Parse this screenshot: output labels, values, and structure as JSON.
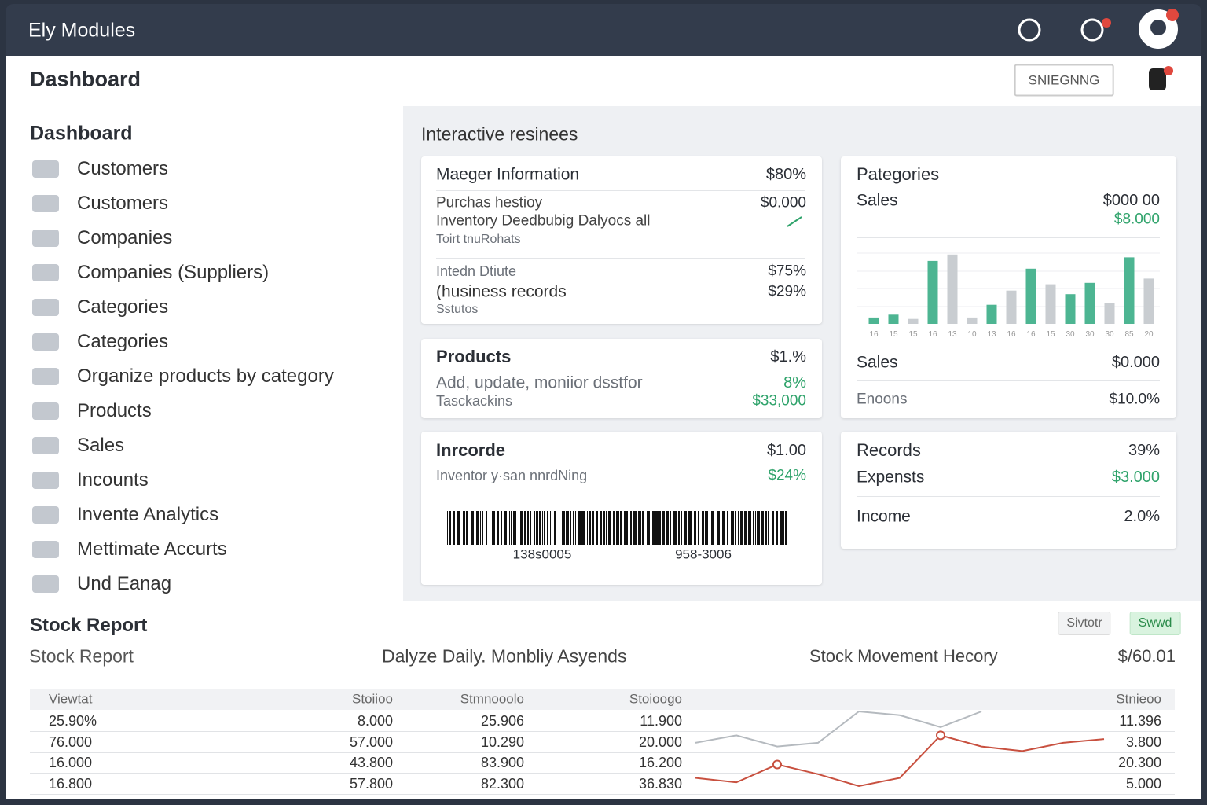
{
  "topbar": {
    "title": "Ely Modules"
  },
  "header": {
    "title": "Dashboard",
    "button": "SNIEGNNG"
  },
  "sidebar": {
    "title": "Dashboard",
    "items": [
      "Customers",
      "Customers",
      "Companies",
      "Companies (Suppliers)",
      "Categories",
      "Categories",
      "Organize products by category",
      "Products",
      "Sales",
      "Incounts",
      "Invente Analytics",
      "Mettimate Accurts",
      "Und Eanag"
    ]
  },
  "main": {
    "title": "Interactive resinees",
    "manager_card": {
      "title": "Maeger Information",
      "title_value": "$80%",
      "purchase": "Purchas hestioy",
      "purchase_value": "$0.000",
      "inventory": "Inventory Deedbubig Dalyocs all",
      "inventory_note": "Toirt tnuRohats",
      "intake": "Intedn Dtiute",
      "intake_value": "$75%",
      "records": "(husiness records",
      "records_value": "$29%",
      "status": "Sstutos"
    },
    "products_card": {
      "title": "Products",
      "title_value": "$1.%",
      "desc": "Add, update, moniior dsstfor",
      "desc_value": "8%",
      "track": "Tasckackins",
      "track_value": "$33,000"
    },
    "barcode_card": {
      "title": "Inrcorde",
      "title_value": "$1.00",
      "desc": "Inventor y·san nnrdNing",
      "desc_value": "$24%",
      "code_left": "138s0005",
      "code_right": "958-3006"
    },
    "categories_card": {
      "title": "Pategories",
      "sales": "Sales",
      "sales_value": "$000 00",
      "sales_change": "$8.000",
      "chart": {
        "type": "bar",
        "categories": [
          "16",
          "15",
          "15",
          "16",
          "13",
          "10",
          "13",
          "16",
          "16",
          "15",
          "30",
          "30",
          "30",
          "85",
          "20"
        ],
        "values": [
          9,
          13,
          7,
          89,
          98,
          9,
          27,
          47,
          78,
          56,
          42,
          58,
          29,
          94,
          64
        ],
        "colors": [
          "#4db592",
          "#4db592",
          "#c9cdd1",
          "#4db592",
          "#c9cdd1",
          "#c9cdd1",
          "#4db592",
          "#c9cdd1",
          "#4db592",
          "#c9cdd1",
          "#4db592",
          "#4db592",
          "#c9cdd1",
          "#4db592",
          "#c9cdd1"
        ]
      },
      "sales2": "Sales",
      "sales2_value": "$0.000",
      "enoons": "Enoons",
      "enoons_value": "$10.0%"
    },
    "records_card": {
      "title": "Records",
      "title_value": "39%",
      "expenses": "Expensts",
      "expenses_value": "$3.000",
      "income": "Income",
      "income_value": "2.0%"
    }
  },
  "stock": {
    "title": "Stock Report",
    "buttons": [
      "Sivtotr",
      "Swwd"
    ],
    "subtitle": "Stock Report",
    "daily": "Dalyze Daily. Monbliy Asyends",
    "movement": "Stock Movement Hecory",
    "total": "$/60.01",
    "table": {
      "header": [
        "Viewtat",
        "Stoiioo",
        "Stmnooolo",
        "Stoioogo",
        "Stnieoo"
      ],
      "rows": [
        [
          "25.90%",
          "8.000",
          "25.906",
          "11.900",
          "11.396"
        ],
        [
          "76.000",
          "57.000",
          "10.290",
          "20.000",
          "3.800"
        ],
        [
          "16.000",
          "43.800",
          "83.900",
          "16.200",
          "20.300"
        ],
        [
          "16.800",
          "57.800",
          "82.300",
          "36.830",
          "5.000"
        ]
      ]
    },
    "chart": {
      "type": "line",
      "series": [
        {
          "color": "#b5babf",
          "values": [
            58,
            68,
            53,
            58,
            100,
            95,
            79,
            100,
            null,
            null,
            null
          ]
        },
        {
          "color": "#c8503f",
          "values": [
            11,
            5,
            29,
            16,
            0,
            11,
            68,
            53,
            47,
            58,
            63
          ]
        }
      ]
    }
  }
}
